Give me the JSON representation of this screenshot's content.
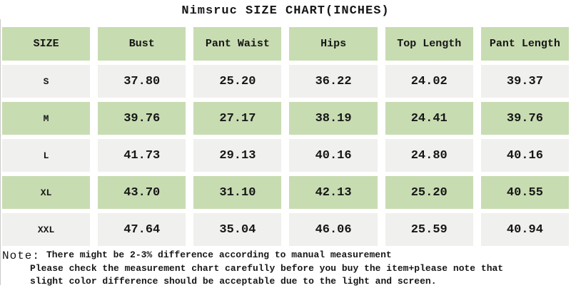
{
  "title": "Nimsruc SIZE CHART(INCHES)",
  "table": {
    "headers": [
      "SIZE",
      "Bust",
      "Pant Waist",
      "Hips",
      "Top Length",
      "Pant Length"
    ],
    "rows": [
      {
        "size": "S",
        "values": [
          "37.80",
          "25.20",
          "36.22",
          "24.02",
          "39.37"
        ]
      },
      {
        "size": "M",
        "values": [
          "39.76",
          "27.17",
          "38.19",
          "24.41",
          "39.76"
        ]
      },
      {
        "size": "L",
        "values": [
          "41.73",
          "29.13",
          "40.16",
          "24.80",
          "40.16"
        ]
      },
      {
        "size": "XL",
        "values": [
          "43.70",
          "31.10",
          "42.13",
          "25.20",
          "40.55"
        ]
      },
      {
        "size": "XXL",
        "values": [
          "47.64",
          "35.04",
          "46.06",
          "25.59",
          "40.94"
        ]
      }
    ]
  },
  "note": {
    "label": "Note:",
    "lines": [
      "There might be 2-3% difference according to manual measurement",
      "Please check the measurement chart carefully before you buy the item+please note that",
      "slight color difference should be acceptable due to the light and screen."
    ]
  },
  "colors": {
    "header_green": "#c8dcb2",
    "row_gray": "#f0f0ee",
    "text": "#161616"
  }
}
